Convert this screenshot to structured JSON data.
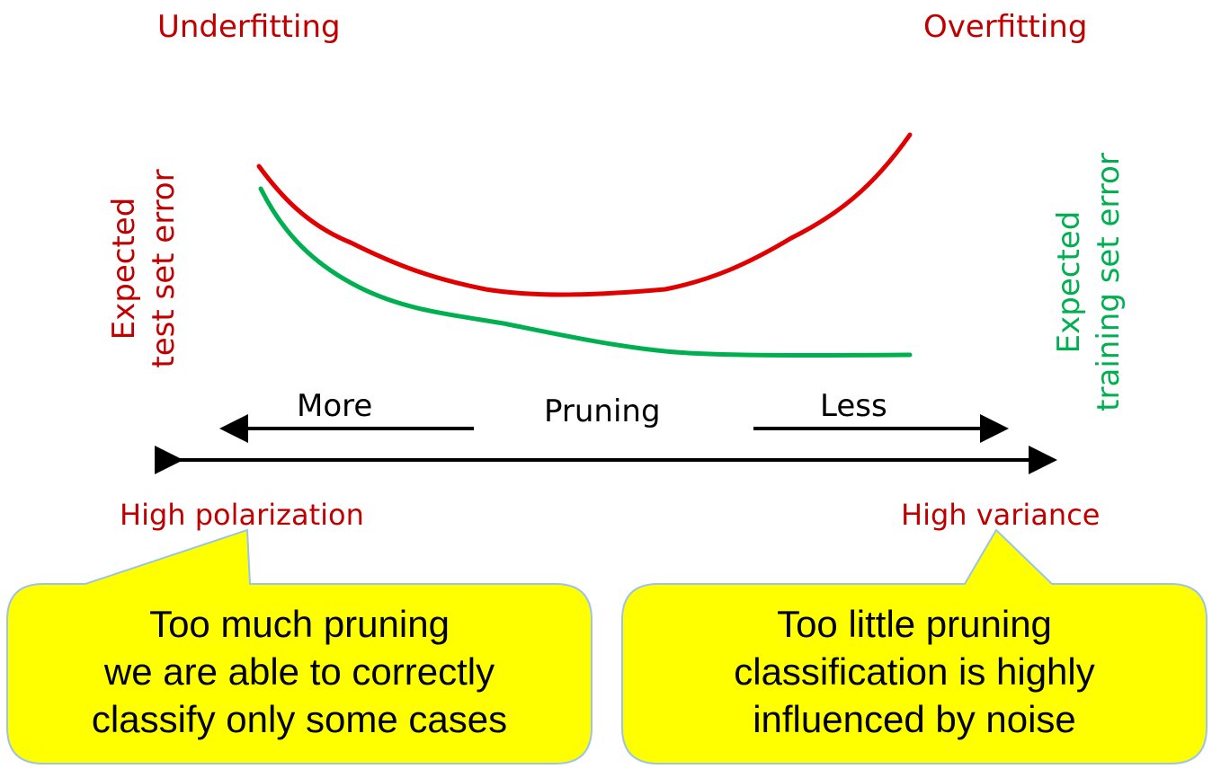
{
  "top_labels": {
    "left": "Underfitting",
    "right": "Overfitting"
  },
  "side_labels": {
    "test": {
      "line1": "Expected",
      "line2": "test set error"
    },
    "training": {
      "line1": "Expected",
      "line2": "training set error"
    }
  },
  "axis": {
    "more": "More",
    "center": "Pruning",
    "less": "Less"
  },
  "bottom_labels": {
    "left": "High polarization",
    "right": "High variance"
  },
  "callouts": {
    "left": {
      "line1": "Too much pruning",
      "line2": "we are able to correctly",
      "line3": "classify only some cases"
    },
    "right": {
      "line1": "Too little pruning",
      "line2": "classification is highly",
      "line3": "influenced by noise"
    }
  },
  "colors": {
    "test_curve": "#e00000",
    "training_curve": "#00b050",
    "label_red": "#c00000",
    "callout_fill": "#ffff00",
    "callout_border": "#9dc3e6"
  }
}
